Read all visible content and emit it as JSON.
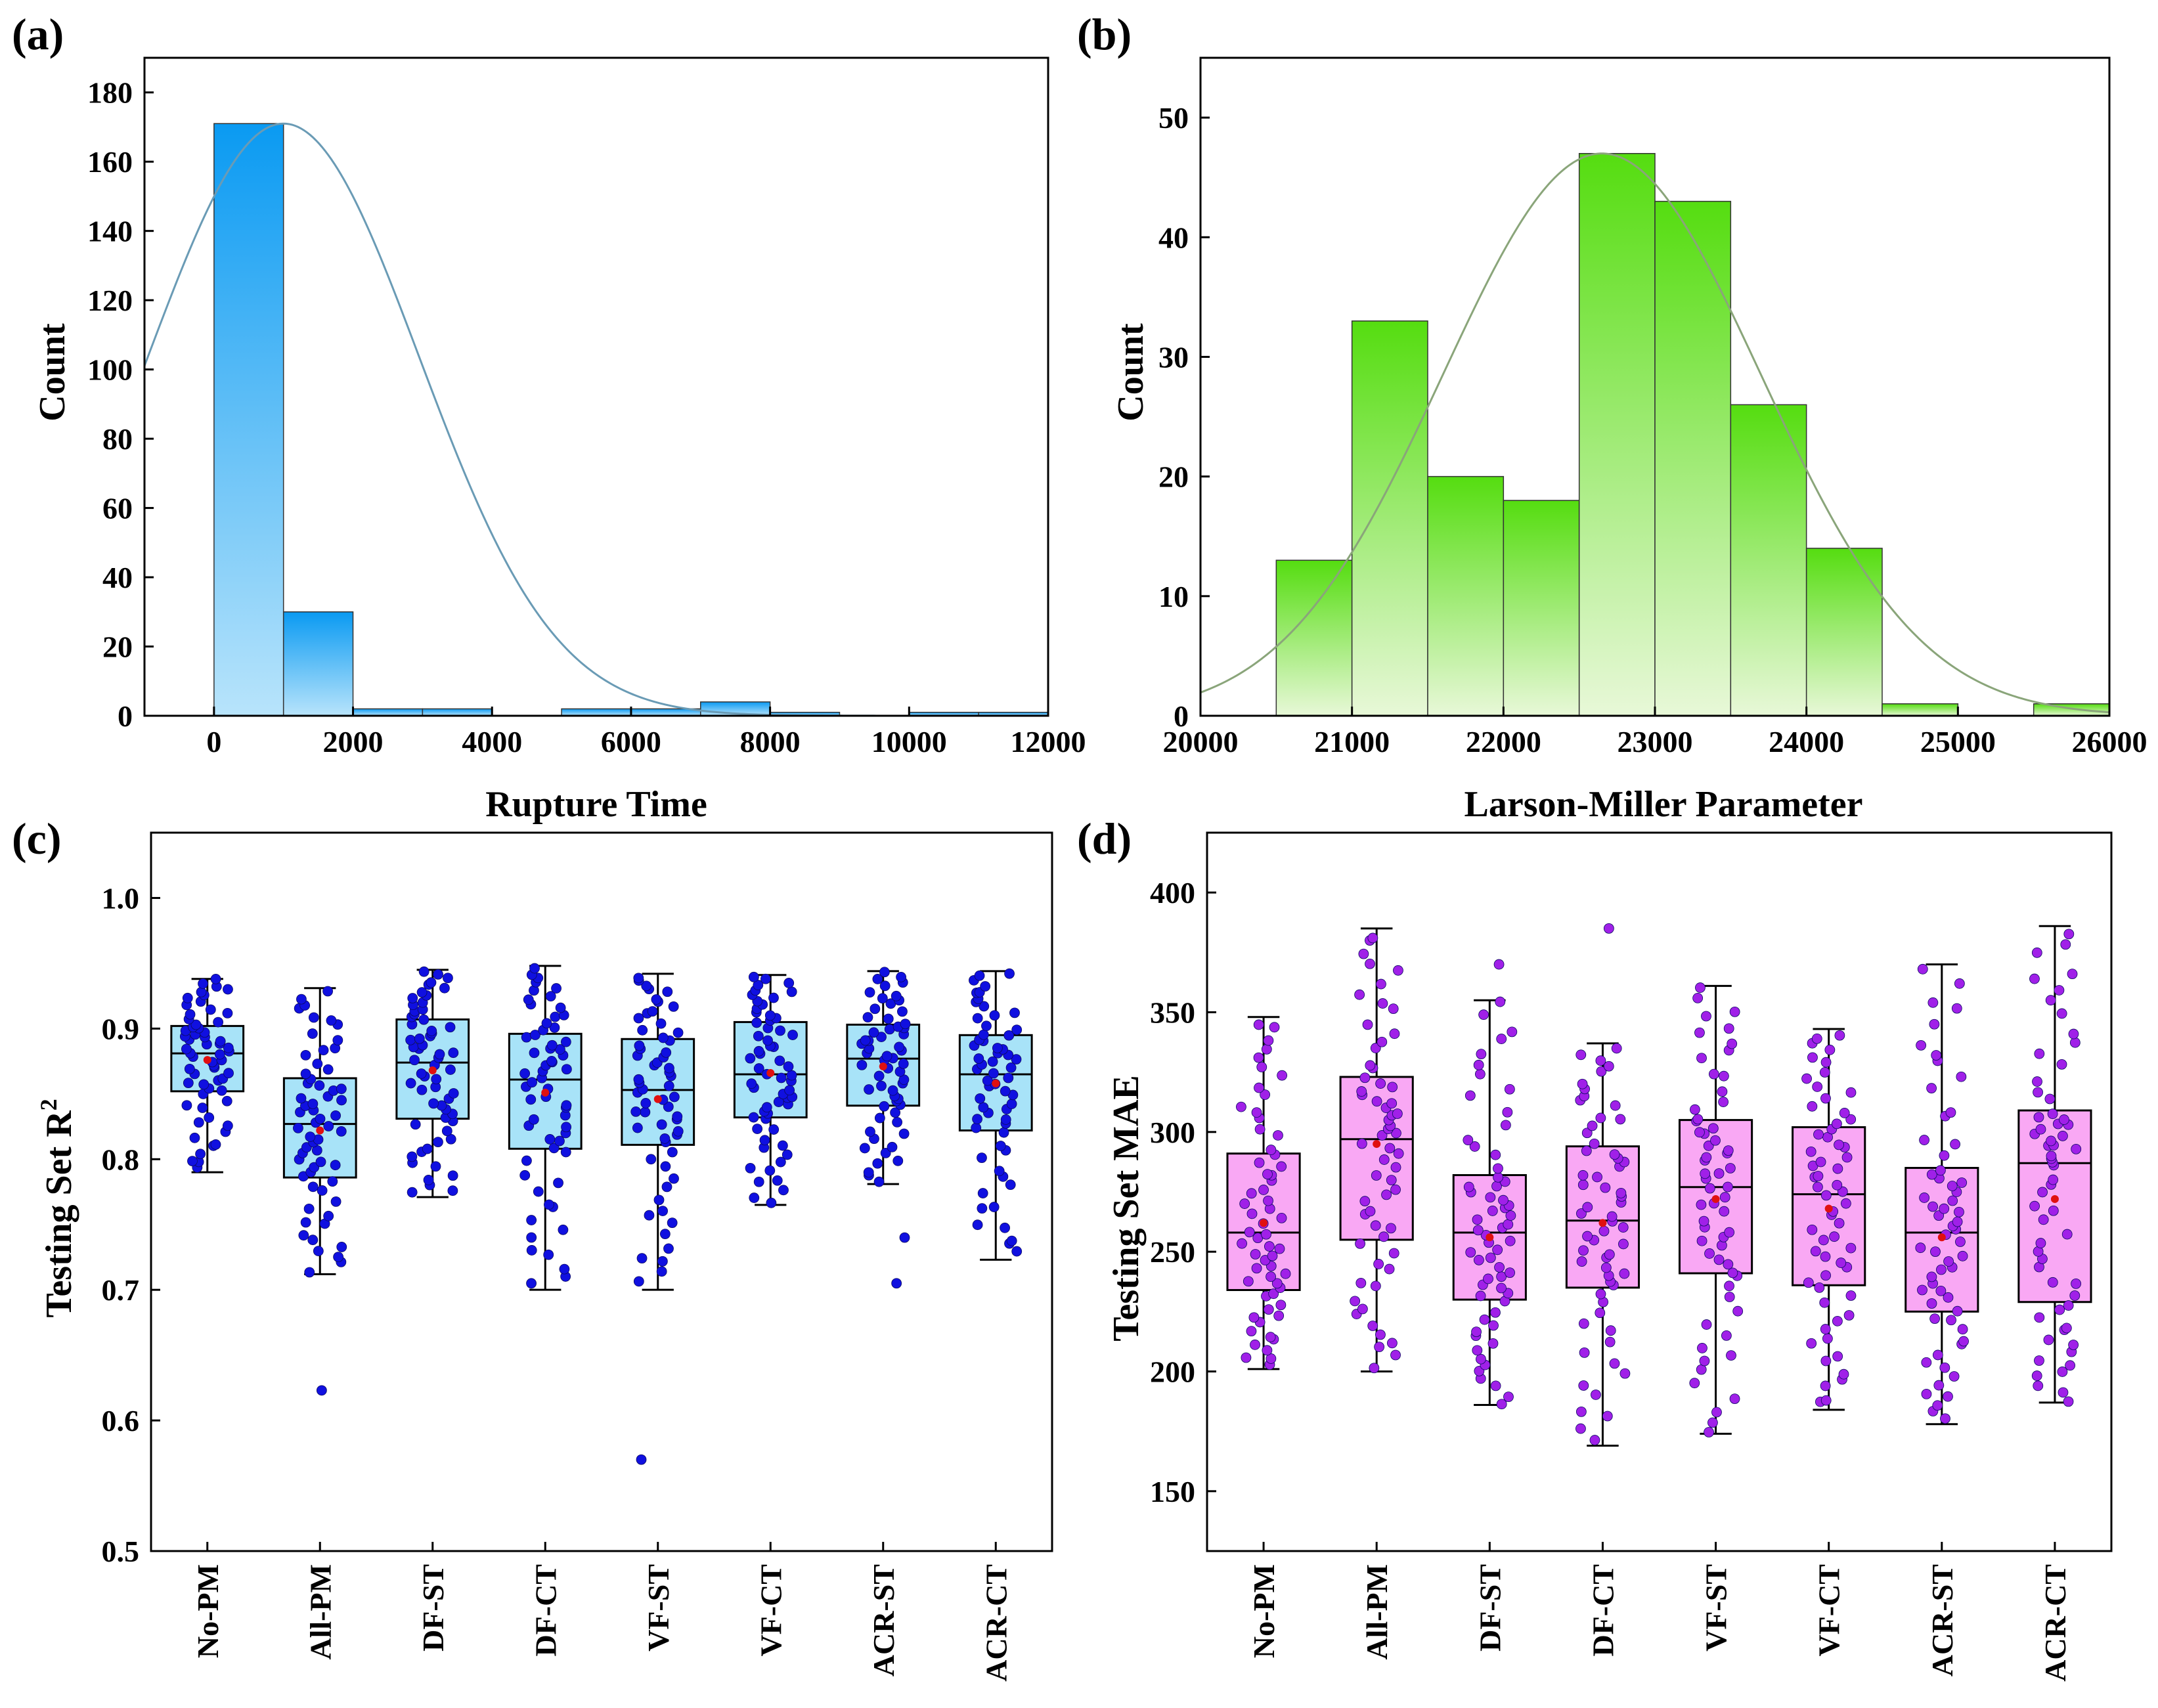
{
  "chart_data": [
    {
      "panel": "(a)",
      "type": "bar",
      "xlabel": "Rupture Time",
      "ylabel": "Count",
      "xlim": [
        -1000,
        12000
      ],
      "ylim": [
        0,
        190
      ],
      "xticks": [
        0,
        2000,
        4000,
        6000,
        8000,
        10000,
        12000
      ],
      "yticks": [
        0,
        20,
        40,
        60,
        80,
        100,
        120,
        140,
        160,
        180
      ],
      "bin_width": 1000,
      "bins": [
        {
          "start": 0,
          "count": 171
        },
        {
          "start": 1000,
          "count": 30
        },
        {
          "start": 2000,
          "count": 2
        },
        {
          "start": 3000,
          "count": 2
        },
        {
          "start": 5000,
          "count": 2
        },
        {
          "start": 6000,
          "count": 2
        },
        {
          "start": 7000,
          "count": 4
        },
        {
          "start": 8000,
          "count": 1
        },
        {
          "start": 10000,
          "count": 1
        },
        {
          "start": 11000,
          "count": 1
        }
      ],
      "fit_curve": {
        "type": "normal",
        "peak_x": 1000,
        "peak_y": 171,
        "sigma": 1950
      },
      "colors": {
        "bar_top": "#0a9af2",
        "bar_bottom": "#b8e4fb",
        "curve": "#6a9bb5"
      }
    },
    {
      "panel": "(b)",
      "type": "bar",
      "xlabel": "Larson-Miller Parameter",
      "ylabel": "Count",
      "xlim": [
        20000,
        26000
      ],
      "ylim": [
        0,
        55
      ],
      "xticks": [
        20000,
        21000,
        22000,
        23000,
        24000,
        25000,
        26000
      ],
      "yticks": [
        0,
        10,
        20,
        30,
        40,
        50
      ],
      "bin_width": 500,
      "bins": [
        {
          "start": 20500,
          "count": 13
        },
        {
          "start": 21000,
          "count": 33
        },
        {
          "start": 21500,
          "count": 20
        },
        {
          "start": 22000,
          "count": 18
        },
        {
          "start": 22500,
          "count": 47
        },
        {
          "start": 23000,
          "count": 43
        },
        {
          "start": 23500,
          "count": 26
        },
        {
          "start": 24000,
          "count": 14
        },
        {
          "start": 24500,
          "count": 1
        },
        {
          "start": 25500,
          "count": 1
        }
      ],
      "fit_curve": {
        "type": "normal",
        "peak_x": 22650,
        "peak_y": 47,
        "sigma": 1050
      },
      "colors": {
        "bar_top": "#55dd10",
        "bar_bottom": "#e8f8d8",
        "curve": "#8aa57a"
      }
    },
    {
      "panel": "(c)",
      "type": "box",
      "ylabel": "Testing Set R",
      "ylabel_sup": "2",
      "ylim": [
        0.5,
        1.05
      ],
      "yticks": [
        "0.5",
        "0.6",
        "0.7",
        "0.8",
        "0.9",
        "1.0"
      ],
      "categories": [
        "No-PM",
        "All-PM",
        "DF-ST",
        "DF-CT",
        "VF-ST",
        "VF-CT",
        "ACR-ST",
        "ACR-CT"
      ],
      "boxes": [
        {
          "whisker_low": 0.79,
          "q1": 0.852,
          "median": 0.881,
          "q3": 0.902,
          "whisker_high": 0.938,
          "mean": 0.876,
          "outliers": []
        },
        {
          "whisker_low": 0.712,
          "q1": 0.786,
          "median": 0.827,
          "q3": 0.862,
          "whisker_high": 0.931,
          "mean": 0.822,
          "outliers": [
            0.623
          ]
        },
        {
          "whisker_low": 0.771,
          "q1": 0.831,
          "median": 0.874,
          "q3": 0.907,
          "whisker_high": 0.945,
          "mean": 0.868,
          "outliers": []
        },
        {
          "whisker_low": 0.7,
          "q1": 0.808,
          "median": 0.861,
          "q3": 0.896,
          "whisker_high": 0.948,
          "mean": 0.851,
          "outliers": []
        },
        {
          "whisker_low": 0.7,
          "q1": 0.811,
          "median": 0.853,
          "q3": 0.892,
          "whisker_high": 0.942,
          "mean": 0.846,
          "outliers": [
            0.57
          ]
        },
        {
          "whisker_low": 0.765,
          "q1": 0.832,
          "median": 0.865,
          "q3": 0.905,
          "whisker_high": 0.941,
          "mean": 0.866,
          "outliers": []
        },
        {
          "whisker_low": 0.781,
          "q1": 0.841,
          "median": 0.877,
          "q3": 0.903,
          "whisker_high": 0.944,
          "mean": 0.871,
          "outliers": [
            0.705,
            0.74
          ]
        },
        {
          "whisker_low": 0.723,
          "q1": 0.822,
          "median": 0.865,
          "q3": 0.895,
          "whisker_high": 0.944,
          "mean": 0.858,
          "outliers": []
        }
      ],
      "colors": {
        "box_fill": "#a8e3f8",
        "points": "#1010e0",
        "mean": "#e01010"
      }
    },
    {
      "panel": "(d)",
      "type": "box",
      "ylabel": "Testing Set MAE",
      "ylim": [
        125,
        425
      ],
      "yticks": [
        "150",
        "200",
        "250",
        "300",
        "350",
        "400"
      ],
      "categories": [
        "No-PM",
        "All-PM",
        "DF-ST",
        "DF-CT",
        "VF-ST",
        "VF-CT",
        "ACR-ST",
        "ACR-CT"
      ],
      "boxes": [
        {
          "whisker_low": 201,
          "q1": 234,
          "median": 258,
          "q3": 291,
          "whisker_high": 348,
          "mean": 262,
          "outliers": []
        },
        {
          "whisker_low": 200,
          "q1": 255,
          "median": 297,
          "q3": 323,
          "whisker_high": 385,
          "mean": 295,
          "outliers": []
        },
        {
          "whisker_low": 186,
          "q1": 230,
          "median": 258,
          "q3": 282,
          "whisker_high": 355,
          "mean": 256,
          "outliers": [
            370
          ]
        },
        {
          "whisker_low": 169,
          "q1": 235,
          "median": 263,
          "q3": 294,
          "whisker_high": 337,
          "mean": 262,
          "outliers": [
            385
          ]
        },
        {
          "whisker_low": 174,
          "q1": 241,
          "median": 277,
          "q3": 305,
          "whisker_high": 361,
          "mean": 272,
          "outliers": []
        },
        {
          "whisker_low": 184,
          "q1": 236,
          "median": 274,
          "q3": 302,
          "whisker_high": 343,
          "mean": 268,
          "outliers": []
        },
        {
          "whisker_low": 178,
          "q1": 225,
          "median": 258,
          "q3": 285,
          "whisker_high": 370,
          "mean": 256,
          "outliers": []
        },
        {
          "whisker_low": 187,
          "q1": 229,
          "median": 287,
          "q3": 309,
          "whisker_high": 386,
          "mean": 272,
          "outliers": []
        }
      ],
      "colors": {
        "box_fill": "#f9a8f4",
        "points": "#a020e8",
        "mean": "#e01010"
      }
    }
  ]
}
